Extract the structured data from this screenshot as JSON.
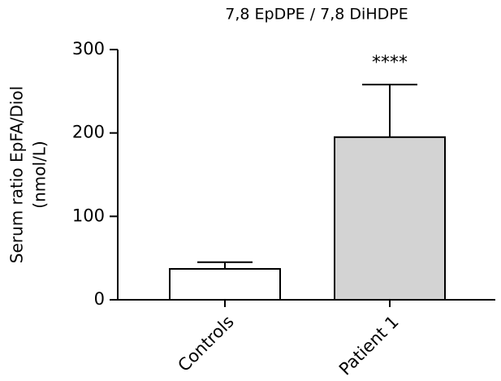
{
  "chart_data": {
    "type": "bar",
    "title": "7,8 EpDPE / 7,8 DiHDPE",
    "y_label": [
      "Serum ratio EpFA/Diol",
      "(nmol/L)"
    ],
    "categories": [
      "Controls",
      "Patient 1"
    ],
    "values": [
      37,
      195
    ],
    "errors": [
      8,
      63
    ],
    "colors": [
      "#ffffff",
      "#d3d3d3"
    ],
    "value_annotations": [
      null,
      "****"
    ],
    "ylim": [
      0,
      300
    ],
    "yticks": [
      0,
      100,
      200,
      300
    ],
    "grid": false
  }
}
